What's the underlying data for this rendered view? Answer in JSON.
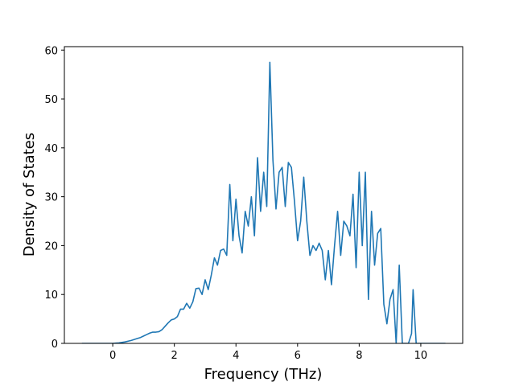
{
  "chart_data": {
    "type": "line",
    "x_label": "Frequency (THz)",
    "y_label": "Density of States",
    "x": [
      -1,
      0,
      0.1,
      0.2,
      0.3,
      0.4,
      0.5,
      0.6,
      0.7,
      0.8,
      0.9,
      1.0,
      1.1,
      1.2,
      1.3,
      1.4,
      1.5,
      1.6,
      1.7,
      1.8,
      1.9,
      2.0,
      2.1,
      2.2,
      2.3,
      2.4,
      2.5,
      2.6,
      2.7,
      2.8,
      2.9,
      3.0,
      3.1,
      3.2,
      3.3,
      3.4,
      3.5,
      3.6,
      3.7,
      3.8,
      3.9,
      4.0,
      4.1,
      4.2,
      4.3,
      4.4,
      4.5,
      4.6,
      4.7,
      4.8,
      4.9,
      5.0,
      5.1,
      5.2,
      5.3,
      5.4,
      5.5,
      5.6,
      5.7,
      5.8,
      5.9,
      6.0,
      6.1,
      6.2,
      6.3,
      6.4,
      6.5,
      6.6,
      6.7,
      6.8,
      6.9,
      7.0,
      7.1,
      7.2,
      7.3,
      7.4,
      7.5,
      7.6,
      7.7,
      7.8,
      7.9,
      8.0,
      8.1,
      8.2,
      8.3,
      8.4,
      8.5,
      8.6,
      8.7,
      8.8,
      8.9,
      9.0,
      9.1,
      9.2,
      9.3,
      9.4,
      9.6,
      9.7,
      9.75,
      9.85,
      10.8
    ],
    "series": [
      {
        "color": "#1f77b4",
        "values": [
          0,
          0,
          0.05,
          0.1,
          0.2,
          0.3,
          0.45,
          0.6,
          0.8,
          1.0,
          1.2,
          1.5,
          1.8,
          2.1,
          2.3,
          2.3,
          2.4,
          2.8,
          3.5,
          4.2,
          4.8,
          5.0,
          5.5,
          7.0,
          7.0,
          8.2,
          7.2,
          8.5,
          11.2,
          11.3,
          10,
          13,
          11,
          14,
          17.5,
          16,
          19,
          19.3,
          18,
          32.5,
          21,
          29.5,
          22,
          18.5,
          27,
          24,
          30,
          22,
          38,
          27,
          35,
          28,
          57.5,
          37.5,
          27.5,
          35,
          36,
          28,
          37,
          36,
          29,
          21,
          25,
          34,
          25,
          18,
          20,
          19,
          20.5,
          19,
          13,
          19,
          12,
          20,
          27,
          18,
          25,
          24,
          22,
          30.5,
          15.5,
          35,
          20,
          35,
          9,
          27,
          16,
          22.5,
          23.5,
          8,
          4,
          9,
          11,
          0,
          16,
          0,
          0,
          2,
          11,
          0,
          0
        ]
      }
    ],
    "xlim": [
      -1.57,
      11.36
    ],
    "ylim": [
      0,
      60.7
    ],
    "xticks": [
      0,
      2,
      4,
      6,
      8,
      10
    ],
    "yticks": [
      0,
      10,
      20,
      30,
      40,
      50,
      60
    ]
  }
}
